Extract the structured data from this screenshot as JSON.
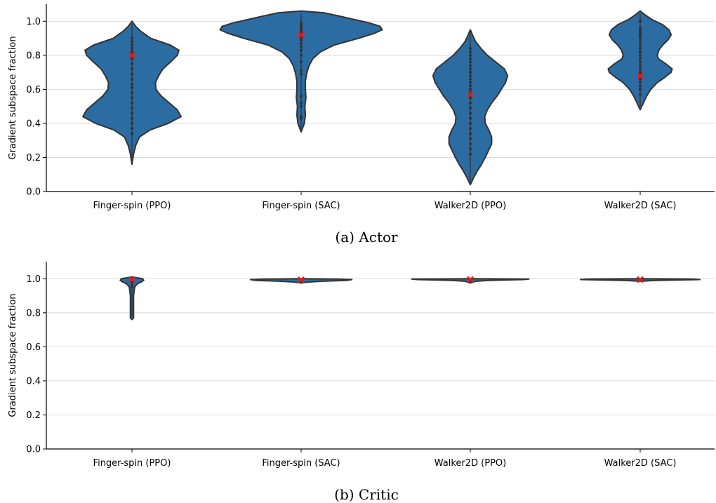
{
  "chart_data": [
    {
      "type": "violin",
      "caption": "(a) Actor",
      "ylabel": "Gradient subspace fraction",
      "ylim": [
        0.0,
        1.1
      ],
      "yticks": [
        "0.0",
        "0.2",
        "0.4",
        "0.6",
        "0.8",
        "1.0"
      ],
      "grid": "horizontal",
      "fill_color": "#2b6ca3",
      "edge_color": "#333333",
      "marker_color": "#e31a1c",
      "categories": [
        "Finger-spin (PPO)",
        "Finger-spin (SAC)",
        "Walker2D (PPO)",
        "Walker2D (SAC)"
      ],
      "series": [
        {
          "range": [
            0.16,
            1.0
          ],
          "median": 0.8,
          "points": [
            0.9,
            0.88,
            0.86,
            0.84,
            0.82,
            0.8,
            0.78,
            0.75,
            0.72,
            0.69,
            0.66,
            0.63,
            0.61,
            0.58,
            0.55,
            0.52,
            0.49,
            0.46,
            0.43,
            0.4,
            0.37,
            0.34
          ],
          "profile": [
            [
              0.16,
              0.0
            ],
            [
              0.22,
              0.03
            ],
            [
              0.27,
              0.07
            ],
            [
              0.32,
              0.14
            ],
            [
              0.36,
              0.33
            ],
            [
              0.4,
              0.68
            ],
            [
              0.44,
              0.92
            ],
            [
              0.48,
              0.85
            ],
            [
              0.52,
              0.7
            ],
            [
              0.56,
              0.55
            ],
            [
              0.6,
              0.45
            ],
            [
              0.64,
              0.44
            ],
            [
              0.68,
              0.5
            ],
            [
              0.72,
              0.58
            ],
            [
              0.76,
              0.72
            ],
            [
              0.8,
              0.85
            ],
            [
              0.83,
              0.88
            ],
            [
              0.86,
              0.72
            ],
            [
              0.9,
              0.35
            ],
            [
              0.94,
              0.17
            ],
            [
              0.97,
              0.07
            ],
            [
              1.0,
              0.0
            ]
          ]
        },
        {
          "range": [
            0.35,
            1.06
          ],
          "median": 0.92,
          "points": [
            0.99,
            0.98,
            0.97,
            0.96,
            0.95,
            0.94,
            0.93,
            0.92,
            0.91,
            0.9,
            0.89,
            0.87,
            0.85,
            0.83,
            0.8,
            0.76,
            0.71,
            0.69,
            0.56,
            0.52,
            0.5,
            0.44,
            0.43
          ],
          "profile": [
            [
              0.35,
              0.0
            ],
            [
              0.4,
              0.06
            ],
            [
              0.45,
              0.08
            ],
            [
              0.5,
              0.07
            ],
            [
              0.55,
              0.09
            ],
            [
              0.6,
              0.08
            ],
            [
              0.65,
              0.08
            ],
            [
              0.7,
              0.11
            ],
            [
              0.74,
              0.15
            ],
            [
              0.78,
              0.22
            ],
            [
              0.82,
              0.36
            ],
            [
              0.86,
              0.62
            ],
            [
              0.9,
              1.08
            ],
            [
              0.93,
              1.38
            ],
            [
              0.95,
              1.52
            ],
            [
              0.97,
              1.48
            ],
            [
              0.99,
              1.28
            ],
            [
              1.01,
              1.0
            ],
            [
              1.03,
              0.72
            ],
            [
              1.05,
              0.42
            ],
            [
              1.06,
              0.0
            ]
          ]
        },
        {
          "range": [
            0.04,
            0.95
          ],
          "median": 0.57,
          "points": [
            0.84,
            0.82,
            0.8,
            0.78,
            0.76,
            0.74,
            0.72,
            0.7,
            0.68,
            0.66,
            0.64,
            0.62,
            0.6,
            0.58,
            0.55,
            0.52,
            0.49,
            0.46,
            0.43,
            0.4,
            0.37,
            0.34,
            0.31,
            0.28,
            0.25,
            0.22
          ],
          "profile": [
            [
              0.04,
              0.0
            ],
            [
              0.08,
              0.06
            ],
            [
              0.12,
              0.13
            ],
            [
              0.16,
              0.21
            ],
            [
              0.2,
              0.28
            ],
            [
              0.24,
              0.34
            ],
            [
              0.28,
              0.4
            ],
            [
              0.32,
              0.4
            ],
            [
              0.36,
              0.35
            ],
            [
              0.4,
              0.28
            ],
            [
              0.44,
              0.27
            ],
            [
              0.48,
              0.32
            ],
            [
              0.52,
              0.4
            ],
            [
              0.56,
              0.5
            ],
            [
              0.6,
              0.58
            ],
            [
              0.64,
              0.66
            ],
            [
              0.68,
              0.7
            ],
            [
              0.72,
              0.64
            ],
            [
              0.76,
              0.48
            ],
            [
              0.8,
              0.32
            ],
            [
              0.84,
              0.2
            ],
            [
              0.88,
              0.1
            ],
            [
              0.92,
              0.04
            ],
            [
              0.95,
              0.0
            ]
          ]
        },
        {
          "range": [
            0.48,
            1.06
          ],
          "median": 0.68,
          "points": [
            1.0,
            0.96,
            0.95,
            0.94,
            0.93,
            0.92,
            0.91,
            0.9,
            0.88,
            0.86,
            0.84,
            0.82,
            0.8,
            0.78,
            0.76,
            0.74,
            0.72,
            0.7,
            0.68,
            0.66,
            0.64,
            0.62,
            0.6,
            0.57
          ],
          "profile": [
            [
              0.48,
              0.0
            ],
            [
              0.52,
              0.06
            ],
            [
              0.56,
              0.12
            ],
            [
              0.6,
              0.2
            ],
            [
              0.64,
              0.32
            ],
            [
              0.67,
              0.46
            ],
            [
              0.7,
              0.58
            ],
            [
              0.72,
              0.6
            ],
            [
              0.75,
              0.48
            ],
            [
              0.78,
              0.34
            ],
            [
              0.8,
              0.32
            ],
            [
              0.83,
              0.35
            ],
            [
              0.86,
              0.42
            ],
            [
              0.89,
              0.52
            ],
            [
              0.92,
              0.58
            ],
            [
              0.95,
              0.54
            ],
            [
              0.98,
              0.42
            ],
            [
              1.01,
              0.22
            ],
            [
              1.04,
              0.08
            ],
            [
              1.06,
              0.0
            ]
          ]
        }
      ]
    },
    {
      "type": "violin",
      "caption": "(b) Critic",
      "ylabel": "Gradient subspace fraction",
      "ylim": [
        0.0,
        1.1
      ],
      "yticks": [
        "0.0",
        "0.2",
        "0.4",
        "0.6",
        "0.8",
        "1.0"
      ],
      "grid": "horizontal",
      "fill_color": "#2b6ca3",
      "edge_color": "#333333",
      "marker_color": "#e31a1c",
      "categories": [
        "Finger-spin (PPO)",
        "Finger-spin (SAC)",
        "Walker2D (PPO)",
        "Walker2D (SAC)"
      ],
      "series": [
        {
          "range": [
            0.76,
            1.01
          ],
          "median": 0.995,
          "points": [
            0.99,
            0.98,
            0.96,
            0.95
          ],
          "profile": [
            [
              0.76,
              0.0
            ],
            [
              0.77,
              0.03
            ],
            [
              0.8,
              0.03
            ],
            [
              0.85,
              0.03
            ],
            [
              0.9,
              0.03
            ],
            [
              0.95,
              0.05
            ],
            [
              0.97,
              0.1
            ],
            [
              0.98,
              0.17
            ],
            [
              0.99,
              0.22
            ],
            [
              1.0,
              0.2
            ],
            [
              1.01,
              0.0
            ]
          ]
        },
        {
          "range": [
            0.975,
            1.0
          ],
          "median": 0.993,
          "points": [
            0.98
          ],
          "profile": [
            [
              0.975,
              0.0
            ],
            [
              0.98,
              0.12
            ],
            [
              0.985,
              0.4
            ],
            [
              0.99,
              0.85
            ],
            [
              0.995,
              0.95
            ],
            [
              0.998,
              0.7
            ],
            [
              1.0,
              0.0
            ]
          ]
        },
        {
          "range": [
            0.975,
            1.0
          ],
          "median": 0.995,
          "points": [
            0.98
          ],
          "profile": [
            [
              0.975,
              0.0
            ],
            [
              0.985,
              0.1
            ],
            [
              0.99,
              0.35
            ],
            [
              0.995,
              1.0
            ],
            [
              0.998,
              1.1
            ],
            [
              1.0,
              0.0
            ]
          ]
        },
        {
          "range": [
            0.985,
            1.0
          ],
          "median": 0.995,
          "points": [],
          "profile": [
            [
              0.985,
              0.0
            ],
            [
              0.99,
              0.3
            ],
            [
              0.995,
              1.12
            ],
            [
              0.998,
              1.0
            ],
            [
              1.0,
              0.0
            ]
          ]
        }
      ]
    }
  ]
}
